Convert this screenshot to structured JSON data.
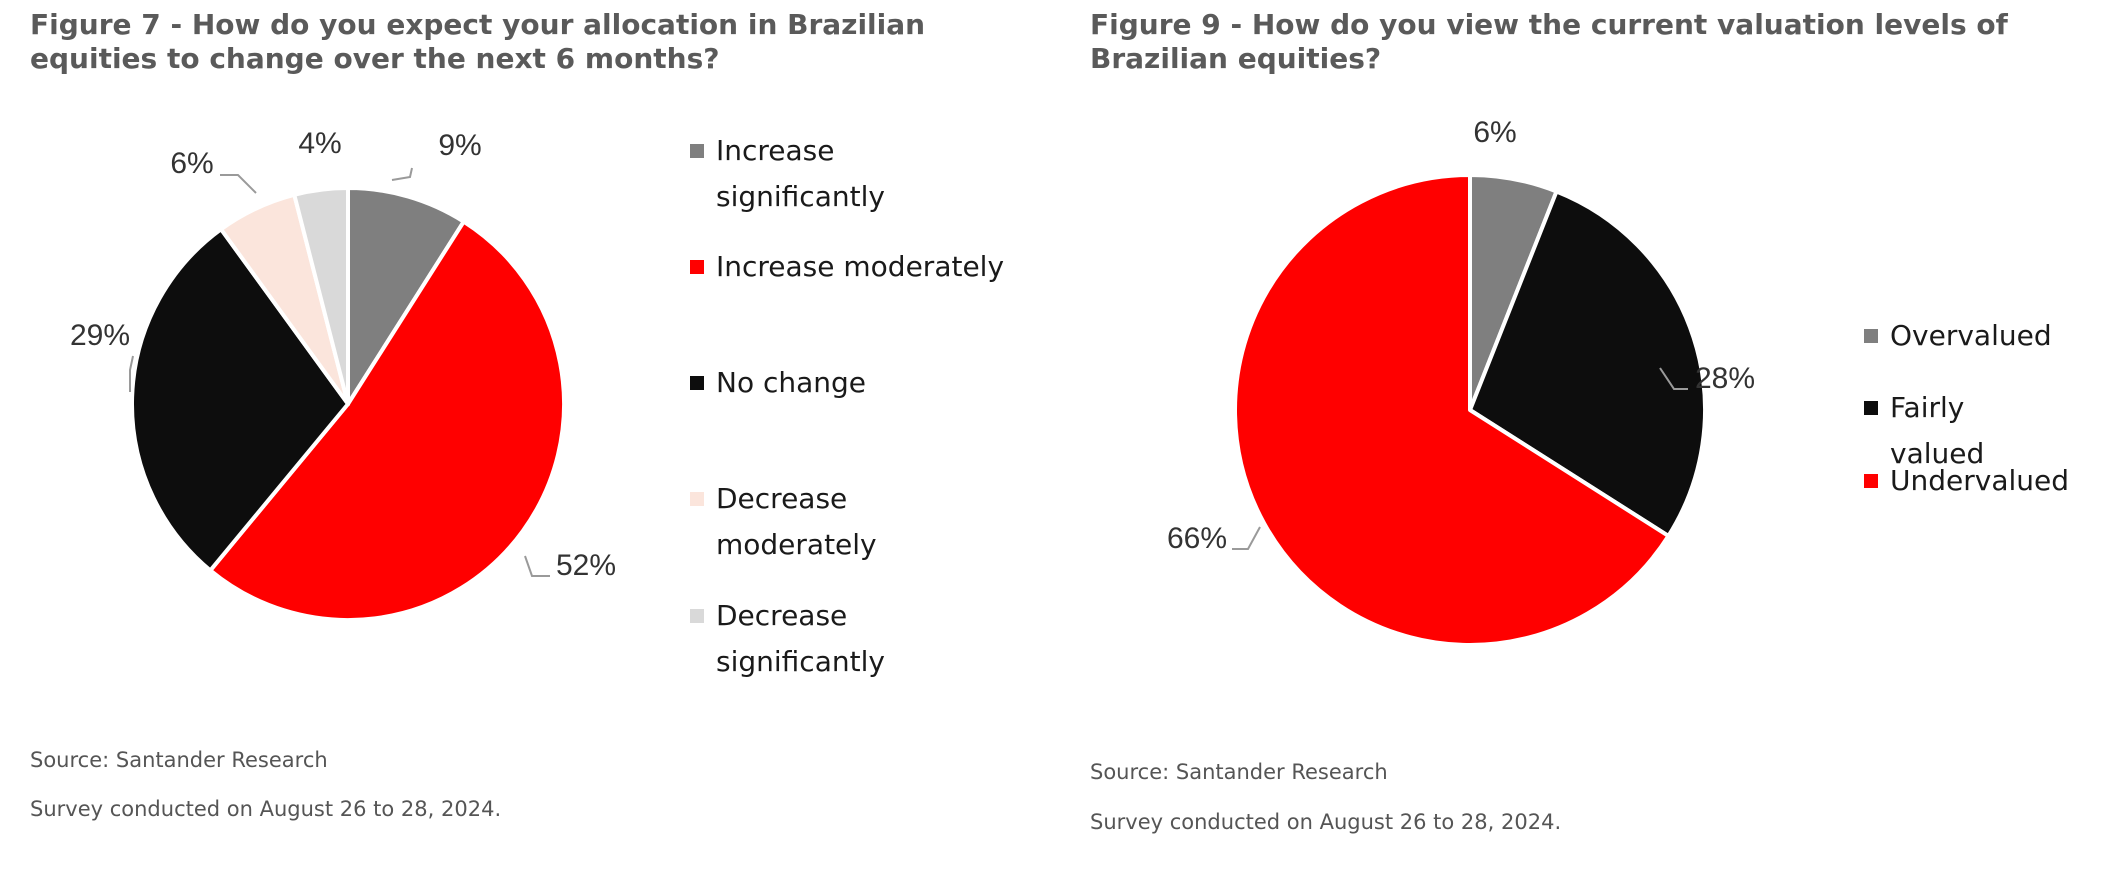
{
  "panels": [
    {
      "title": "Figure 7 - How do you expect your allocation in Brazilian equities to change over the next 6 months?",
      "source": "Source: Santander Research",
      "survey": "Survey conducted on August 26 to 28, 2024."
    },
    {
      "title": "Figure 9 - How do you view the current valuation levels of Brazilian equities?",
      "source": "Source: Santander Research",
      "survey": "Survey conducted on August 26 to 28, 2024."
    }
  ],
  "chart_data": [
    {
      "type": "pie",
      "title": "Figure 7 - How do you expect your allocation in Brazilian equities to change over the next 6 months?",
      "categories": [
        "Increase significantly",
        "Increase moderately",
        "No change",
        "Decrease moderately",
        "Decrease significantly"
      ],
      "values": [
        9,
        52,
        29,
        6,
        4
      ],
      "data_labels": [
        "9%",
        "52%",
        "29%",
        "6%",
        "4%"
      ],
      "colors": [
        "#7f7f7f",
        "#ff0000",
        "#0d0d0d",
        "#fbe5dc",
        "#d9d9d9"
      ],
      "legend": "right",
      "start": "12 o'clock",
      "direction": "clockwise"
    },
    {
      "type": "pie",
      "title": "Figure 9 - How do you view the current valuation levels of Brazilian equities?",
      "categories": [
        "Overvalued",
        "Fairly valued",
        "Undervalued"
      ],
      "values": [
        6,
        28,
        66
      ],
      "data_labels": [
        "6%",
        "28%",
        "66%"
      ],
      "colors": [
        "#7f7f7f",
        "#0d0d0d",
        "#ff0000"
      ],
      "legend": "right",
      "start": "12 o'clock",
      "direction": "clockwise"
    }
  ]
}
